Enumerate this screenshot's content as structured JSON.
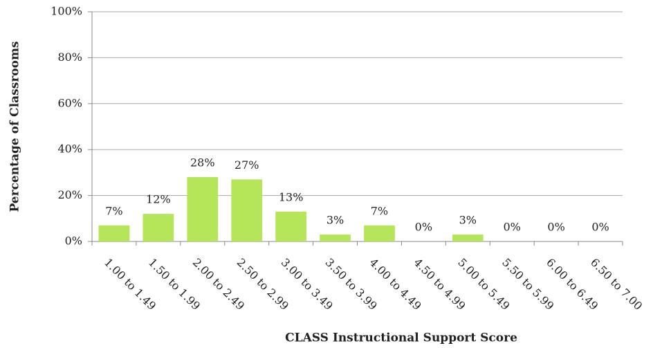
{
  "chart_data": {
    "type": "bar",
    "x_label": "CLASS Instructional Support Score",
    "y_label": "Percentage of Classrooms",
    "categories": [
      "1.00 to 1.49",
      "1.50 to 1.99",
      "2.00 to 2.49",
      "2.50 to 2.99",
      "3.00 to 3.49",
      "3.50 to 3.99",
      "4.00 to 4.49",
      "4.50 to 4.99",
      "5.00 to 5.49",
      "5.50 to 5.99",
      "6.00 to 6.49",
      "6.50 to 7.00"
    ],
    "values": [
      7,
      12,
      28,
      27,
      13,
      3,
      7,
      0,
      3,
      0,
      0,
      0
    ],
    "value_labels": [
      "7%",
      "12%",
      "28%",
      "27%",
      "13%",
      "3%",
      "7%",
      "0%",
      "3%",
      "0%",
      "0%",
      "0%"
    ],
    "color": "#b5e65a",
    "ylim": [
      0,
      100
    ],
    "yticks": [
      {
        "value": 0,
        "label": "0%"
      },
      {
        "value": 20,
        "label": "20%"
      },
      {
        "value": 40,
        "label": "40%"
      },
      {
        "value": 60,
        "label": "60%"
      },
      {
        "value": 80,
        "label": "80%"
      },
      {
        "value": 100,
        "label": "100%"
      }
    ],
    "grid": true
  }
}
